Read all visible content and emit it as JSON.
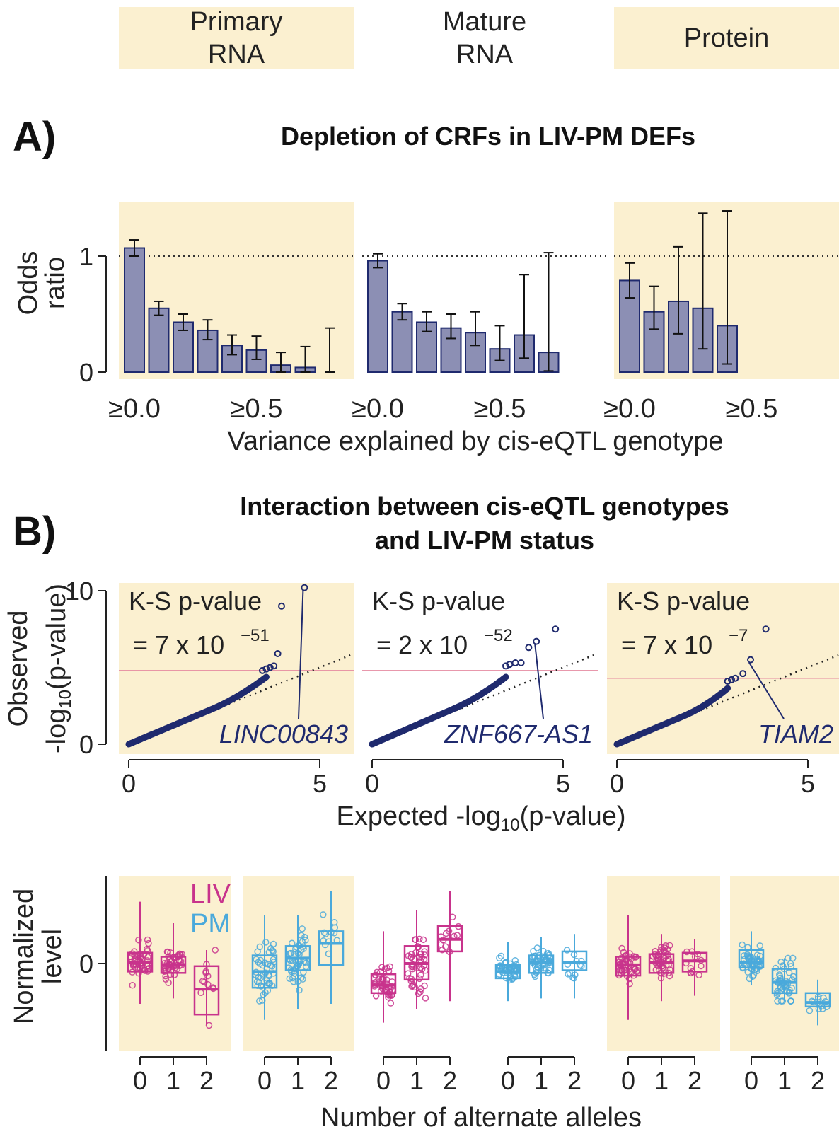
{
  "headers": {
    "col1": "Primary\nRNA",
    "col2": "Mature\nRNA",
    "col3": "Protein"
  },
  "panelA": {
    "label": "A)",
    "title": "Depletion of CRFs in LIV-PM DEFs"
  },
  "panelB": {
    "label": "B)",
    "title_line1": "Interaction between cis-eQTL genotypes",
    "title_line2": "and LIV-PM status"
  },
  "colors": {
    "bar_fill": "#8c8fb4",
    "bar_stroke": "#1f2a6e",
    "qq_points": "#1f2a6e",
    "liv": "#c8338c",
    "pm": "#4aa9db",
    "shade": "#fbf0d0",
    "threshold": "#e58aa0"
  },
  "chart_data": [
    {
      "type": "bar",
      "title": "Depletion of CRFs in LIV-PM DEFs",
      "ylabel": "Odds ratio",
      "xlabel": "Variance explained by cis-eQTL genotype",
      "ylim": [
        0,
        1.4
      ],
      "yticks": [
        "0",
        "1"
      ],
      "reference_line": 1,
      "panels": [
        {
          "name": "Primary RNA",
          "xticks": [
            "≥0.0",
            "≥0.5"
          ],
          "values": [
            1.07,
            0.55,
            0.43,
            0.36,
            0.23,
            0.19,
            0.06,
            0.04,
            0.0
          ],
          "ci_low": [
            1.0,
            0.49,
            0.36,
            0.28,
            0.15,
            0.11,
            0.0,
            0.0,
            0.0
          ],
          "ci_high": [
            1.14,
            0.61,
            0.5,
            0.45,
            0.32,
            0.31,
            0.17,
            0.22,
            0.38
          ]
        },
        {
          "name": "Mature RNA",
          "xticks": [
            "≥0.0",
            "≥0.5"
          ],
          "values": [
            0.96,
            0.52,
            0.43,
            0.38,
            0.34,
            0.2,
            0.32,
            0.17
          ],
          "ci_low": [
            0.9,
            0.45,
            0.35,
            0.29,
            0.23,
            0.1,
            0.12,
            0.01
          ],
          "ci_high": [
            1.02,
            0.59,
            0.52,
            0.5,
            0.52,
            0.4,
            0.84,
            1.03
          ]
        },
        {
          "name": "Protein",
          "xticks": [
            "≥0.0",
            "≥0.5"
          ],
          "values": [
            0.79,
            0.52,
            0.61,
            0.55,
            0.4
          ],
          "ci_low": [
            0.64,
            0.37,
            0.33,
            0.2,
            0.07
          ],
          "ci_high": [
            0.94,
            0.74,
            1.08,
            1.37,
            1.39
          ]
        }
      ]
    },
    {
      "type": "scatter",
      "title": "Interaction between cis-eQTL genotypes and LIV-PM status",
      "xlabel": "Expected -log10(p-value)",
      "ylabel": "Observed -log10(p-value)",
      "xlim": [
        0,
        5.5
      ],
      "ylim": [
        0,
        10.5
      ],
      "xticks": [
        "0",
        "5"
      ],
      "yticks": [
        "0",
        "10"
      ],
      "panels": [
        {
          "ks_label": "K-S p-value",
          "ks_value": "= 7 x 10",
          "ks_exp": "−51",
          "gene": "LINC00843",
          "threshold": 4.8,
          "slope": 1.05,
          "max_x": 3.6,
          "tail": [
            [
              3.5,
              4.8
            ],
            [
              3.6,
              4.9
            ],
            [
              3.7,
              5.0
            ],
            [
              3.8,
              5.1
            ],
            [
              3.9,
              5.9
            ],
            [
              4.0,
              9.0
            ],
            [
              4.6,
              10.2
            ]
          ],
          "highlight": [
            4.6,
            10.2
          ]
        },
        {
          "ks_label": "K-S p-value",
          "ks_value": "= 2 x 10",
          "ks_exp": "−52",
          "gene": "ZNF667-AS1",
          "threshold": 4.8,
          "slope": 1.08,
          "max_x": 3.5,
          "tail": [
            [
              3.5,
              5.1
            ],
            [
              3.6,
              5.2
            ],
            [
              3.75,
              5.3
            ],
            [
              3.9,
              5.3
            ],
            [
              4.1,
              6.3
            ],
            [
              4.3,
              6.7
            ],
            [
              4.8,
              7.5
            ]
          ],
          "highlight": [
            4.3,
            6.7
          ]
        },
        {
          "ks_label": "K-S p-value",
          "ks_value": "= 7 x 10",
          "ks_exp": "−7",
          "gene": "TIAM2",
          "threshold": 4.3,
          "slope": 1.05,
          "max_x": 2.9,
          "tail": [
            [
              2.9,
              4.1
            ],
            [
              3.0,
              4.2
            ],
            [
              3.1,
              4.3
            ],
            [
              3.3,
              4.6
            ],
            [
              3.5,
              5.5
            ],
            [
              3.9,
              7.5
            ]
          ],
          "highlight": [
            3.5,
            5.5
          ]
        }
      ]
    },
    {
      "type": "box",
      "ylabel": "Normalized level",
      "xlabel": "Number of alternate alleles",
      "yticks": [
        "0"
      ],
      "legend": [
        "LIV",
        "PM"
      ],
      "categories": [
        "0",
        "1",
        "2"
      ],
      "panels": [
        {
          "group": "LIV",
          "min": [
            -1.5,
            -1.3,
            -2.3
          ],
          "q1": [
            -0.3,
            -0.35,
            -1.9
          ],
          "median": [
            0.05,
            -0.05,
            -0.95
          ],
          "q3": [
            0.4,
            0.25,
            -0.1
          ],
          "max": [
            2.3,
            1.5,
            0.5
          ]
        },
        {
          "group": "PM",
          "min": [
            -2.1,
            -1.7,
            -1.5
          ],
          "q1": [
            -0.9,
            -0.25,
            -0.05
          ],
          "median": [
            -0.3,
            0.2,
            0.75
          ],
          "q3": [
            0.3,
            0.65,
            1.2
          ],
          "max": [
            1.8,
            1.8,
            2.7
          ]
        },
        {
          "group": "LIV",
          "min": [
            -2.2,
            -1.7,
            -1.4
          ],
          "q1": [
            -1.1,
            -0.6,
            0.45
          ],
          "median": [
            -0.8,
            0.0,
            0.9
          ],
          "q3": [
            -0.4,
            0.65,
            1.4
          ],
          "max": [
            1.2,
            2.0,
            2.7
          ]
        },
        {
          "group": "PM",
          "min": [
            -1.4,
            -1.3,
            -1.3
          ],
          "q1": [
            -0.55,
            -0.35,
            -0.25
          ],
          "median": [
            -0.3,
            0.05,
            0.05
          ],
          "q3": [
            -0.05,
            0.3,
            0.45
          ],
          "max": [
            0.8,
            1.0,
            1.1
          ]
        },
        {
          "group": "LIV",
          "min": [
            -2.1,
            -1.4,
            -1.2
          ],
          "q1": [
            -0.45,
            -0.35,
            -0.3
          ],
          "median": [
            -0.05,
            0.05,
            0.1
          ],
          "q3": [
            0.25,
            0.35,
            0.4
          ],
          "max": [
            1.8,
            1.1,
            0.9
          ]
        },
        {
          "group": "PM",
          "min": [
            -0.8,
            -1.4,
            -2.3
          ],
          "q1": [
            -0.15,
            -1.1,
            -1.6
          ],
          "median": [
            0.05,
            -0.7,
            -1.45
          ],
          "q3": [
            0.5,
            -0.2,
            -1.1
          ],
          "max": [
            1.2,
            0.2,
            -0.6
          ]
        }
      ]
    }
  ]
}
